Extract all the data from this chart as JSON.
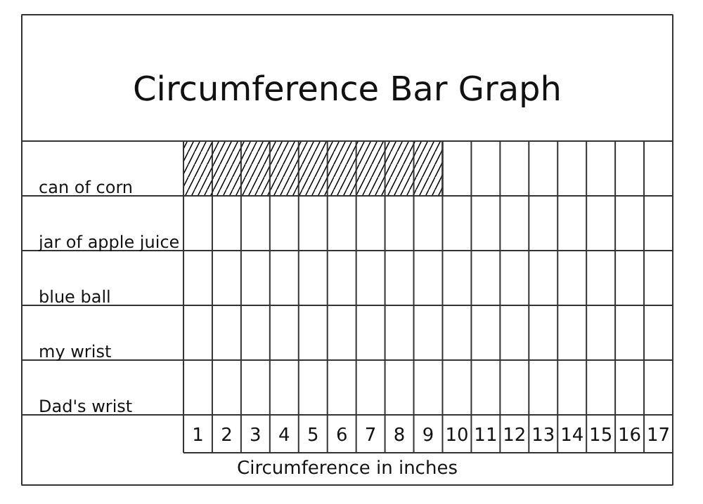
{
  "chart_data": {
    "type": "bar",
    "orientation": "horizontal",
    "title": "Circumference Bar Graph",
    "xlabel": "Circumference in inches",
    "categories": [
      "can of corn",
      "jar of apple juice",
      "blue ball",
      "my wrist",
      "Dad's wrist"
    ],
    "values": [
      9,
      null,
      null,
      null,
      null
    ],
    "color": "#000000",
    "xlim": [
      0,
      17
    ],
    "xticks": [
      {
        "value": 0,
        "label": null
      },
      {
        "value": 0.5,
        "label": "1"
      },
      {
        "value": 1,
        "label": null
      },
      {
        "value": 1.5,
        "label": "2"
      },
      {
        "value": 2,
        "label": null
      },
      {
        "value": 2.5,
        "label": "3"
      },
      {
        "value": 3,
        "label": null
      },
      {
        "value": 3.5,
        "label": "4"
      },
      {
        "value": 4,
        "label": null
      },
      {
        "value": 4.5,
        "label": "5"
      },
      {
        "value": 5,
        "label": null
      },
      {
        "value": 5.5,
        "label": "6"
      },
      {
        "value": 6,
        "label": null
      },
      {
        "value": 6.5,
        "label": "7"
      },
      {
        "value": 7,
        "label": null
      },
      {
        "value": 7.5,
        "label": "8"
      },
      {
        "value": 8,
        "label": null
      },
      {
        "value": 8.5,
        "label": "9"
      },
      {
        "value": 9,
        "label": null
      },
      {
        "value": 9.5,
        "label": "10"
      },
      {
        "value": 10,
        "label": null
      },
      {
        "value": 10.5,
        "label": "11"
      },
      {
        "value": 11,
        "label": null
      },
      {
        "value": 11.5,
        "label": "12"
      },
      {
        "value": 12,
        "label": null
      },
      {
        "value": 12.5,
        "label": "13"
      },
      {
        "value": 13,
        "label": null
      },
      {
        "value": 13.5,
        "label": "14"
      },
      {
        "value": 14,
        "label": null
      },
      {
        "value": 14.5,
        "label": "15"
      },
      {
        "value": 15,
        "label": null
      },
      {
        "value": 15.5,
        "label": "16"
      },
      {
        "value": 16,
        "label": null
      },
      {
        "value": 16.5,
        "label": "17"
      },
      {
        "value": 17,
        "label": null
      }
    ],
    "grid": true
  }
}
